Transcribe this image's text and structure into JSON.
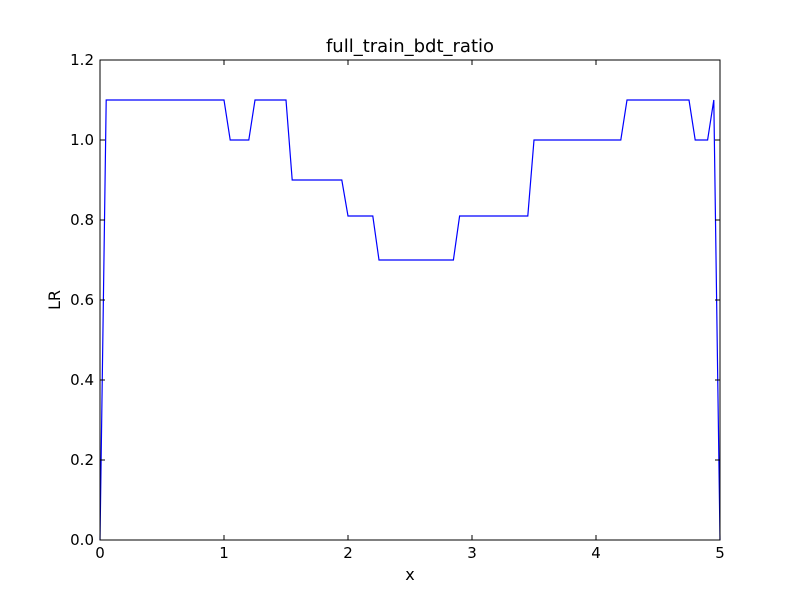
{
  "chart_data": {
    "type": "line",
    "title": "full_train_bdt_ratio",
    "xlabel": "x",
    "ylabel": "LR",
    "xlim": [
      0,
      5
    ],
    "ylim": [
      0,
      1.2
    ],
    "xticks": [
      0,
      1,
      2,
      3,
      4,
      5
    ],
    "yticks": [
      0.0,
      0.2,
      0.4,
      0.6,
      0.8,
      1.0,
      1.2
    ],
    "xtick_labels": [
      "0",
      "1",
      "2",
      "3",
      "4",
      "5"
    ],
    "ytick_labels": [
      "0.0",
      "0.2",
      "0.4",
      "0.6",
      "0.8",
      "1.0",
      "1.2"
    ],
    "grid": false,
    "line_color": "#0000ff",
    "series": [
      {
        "x": [
          0.0,
          0.05,
          1.0,
          1.05,
          1.2,
          1.25,
          1.5,
          1.55,
          1.95,
          2.0,
          2.2,
          2.25,
          2.85,
          2.9,
          3.45,
          3.5,
          4.2,
          4.25,
          4.75,
          4.8,
          4.9,
          4.95,
          5.0
        ],
        "y": [
          0.0,
          1.1,
          1.1,
          1.0,
          1.0,
          1.1,
          1.1,
          0.9,
          0.9,
          0.81,
          0.81,
          0.7,
          0.7,
          0.81,
          0.81,
          1.0,
          1.0,
          1.1,
          1.1,
          1.0,
          1.0,
          1.1,
          0.0
        ]
      }
    ]
  }
}
